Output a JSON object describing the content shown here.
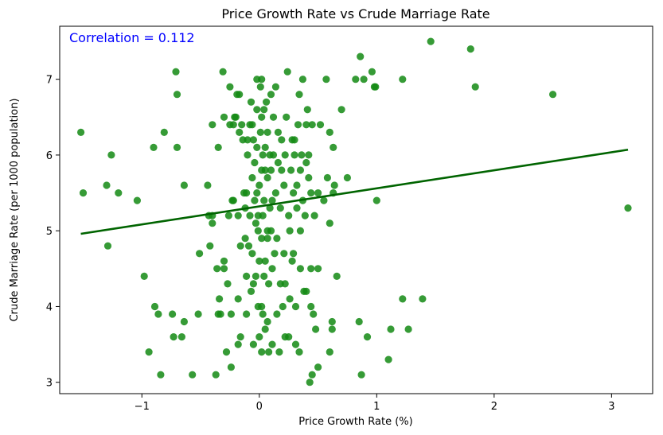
{
  "chart_data": {
    "type": "scatter",
    "title": "Price Growth Rate vs Crude Marriage Rate",
    "xlabel": "Price Growth Rate (%)",
    "ylabel": "Crude Marriage Rate (per 1000 population)",
    "xlim": [
      -1.7,
      3.35
    ],
    "ylim": [
      2.85,
      7.7
    ],
    "xticks": [
      -1,
      0,
      1,
      2,
      3
    ],
    "yticks": [
      3,
      4,
      5,
      6,
      7
    ],
    "xtick_labels": [
      "−1",
      "0",
      "1",
      "2",
      "3"
    ],
    "ytick_labels": [
      "3",
      "4",
      "5",
      "6",
      "7"
    ],
    "grid": false,
    "annotation": "Correlation = 0.112",
    "annotation_color": "#0000ff",
    "point_color": "#138a13",
    "line_color": "#006400",
    "regression_line": {
      "x": [
        -1.52,
        3.14
      ],
      "y": [
        4.96,
        6.07
      ]
    },
    "points": [
      [
        -1.52,
        6.3
      ],
      [
        -1.5,
        5.5
      ],
      [
        -1.3,
        5.6
      ],
      [
        -1.29,
        4.8
      ],
      [
        -1.26,
        6.0
      ],
      [
        -1.2,
        5.5
      ],
      [
        -1.04,
        5.4
      ],
      [
        -0.98,
        4.4
      ],
      [
        -0.94,
        3.4
      ],
      [
        -0.9,
        6.1
      ],
      [
        -0.89,
        4.0
      ],
      [
        -0.86,
        3.9
      ],
      [
        -0.84,
        3.1
      ],
      [
        -0.81,
        6.3
      ],
      [
        -0.74,
        3.9
      ],
      [
        -0.73,
        3.6
      ],
      [
        -0.71,
        7.1
      ],
      [
        -0.7,
        6.8
      ],
      [
        -0.7,
        6.1
      ],
      [
        -0.66,
        3.6
      ],
      [
        -0.64,
        3.8
      ],
      [
        -0.64,
        5.6
      ],
      [
        -0.57,
        3.1
      ],
      [
        -0.52,
        3.9
      ],
      [
        -0.51,
        4.7
      ],
      [
        -0.44,
        5.6
      ],
      [
        -0.43,
        5.2
      ],
      [
        -0.42,
        4.8
      ],
      [
        -0.4,
        5.2
      ],
      [
        -0.4,
        5.1
      ],
      [
        -0.4,
        6.4
      ],
      [
        -0.37,
        3.1
      ],
      [
        -0.36,
        4.5
      ],
      [
        -0.35,
        3.9
      ],
      [
        -0.35,
        6.1
      ],
      [
        -0.34,
        4.1
      ],
      [
        -0.33,
        3.9
      ],
      [
        -0.31,
        7.1
      ],
      [
        -0.3,
        4.5
      ],
      [
        -0.3,
        4.6
      ],
      [
        -0.3,
        6.5
      ],
      [
        -0.28,
        3.4
      ],
      [
        -0.27,
        4.3
      ],
      [
        -0.26,
        5.2
      ],
      [
        -0.25,
        6.4
      ],
      [
        -0.24,
        3.9
      ],
      [
        -0.25,
        6.9
      ],
      [
        -0.24,
        3.2
      ],
      [
        -0.23,
        5.4
      ],
      [
        -0.22,
        5.4
      ],
      [
        -0.22,
        6.4
      ],
      [
        -0.21,
        6.5
      ],
      [
        -0.2,
        6.5
      ],
      [
        -0.19,
        6.8
      ],
      [
        -0.18,
        3.5
      ],
      [
        -0.18,
        4.1
      ],
      [
        -0.18,
        5.2
      ],
      [
        -0.17,
        6.3
      ],
      [
        -0.17,
        6.8
      ],
      [
        -0.16,
        3.6
      ],
      [
        -0.16,
        4.8
      ],
      [
        -0.15,
        6.4
      ],
      [
        -0.14,
        6.2
      ],
      [
        -0.13,
        5.5
      ],
      [
        -0.12,
        4.9
      ],
      [
        -0.12,
        5.3
      ],
      [
        -0.11,
        3.9
      ],
      [
        -0.11,
        4.4
      ],
      [
        -0.11,
        5.5
      ],
      [
        -0.1,
        6.0
      ],
      [
        -0.1,
        6.2
      ],
      [
        -0.09,
        4.8
      ],
      [
        -0.08,
        5.2
      ],
      [
        -0.08,
        6.4
      ],
      [
        -0.07,
        6.7
      ],
      [
        -0.07,
        4.2
      ],
      [
        -0.06,
        4.7
      ],
      [
        -0.06,
        5.7
      ],
      [
        -0.06,
        6.4
      ],
      [
        -0.05,
        3.5
      ],
      [
        -0.05,
        4.3
      ],
      [
        -0.05,
        6.2
      ],
      [
        -0.04,
        5.4
      ],
      [
        -0.04,
        5.9
      ],
      [
        -0.03,
        4.4
      ],
      [
        -0.03,
        5.1
      ],
      [
        -0.02,
        5.5
      ],
      [
        -0.02,
        6.1
      ],
      [
        -0.02,
        6.6
      ],
      [
        -0.02,
        7.0
      ],
      [
        -0.01,
        4.0
      ],
      [
        -0.01,
        5.0
      ],
      [
        -0.01,
        5.2
      ],
      [
        0.0,
        3.6
      ],
      [
        0.0,
        4.6
      ],
      [
        0.0,
        5.6
      ],
      [
        0.01,
        6.3
      ],
      [
        0.01,
        6.9
      ],
      [
        0.02,
        3.4
      ],
      [
        0.02,
        4.0
      ],
      [
        0.02,
        4.9
      ],
      [
        0.02,
        5.8
      ],
      [
        0.02,
        6.5
      ],
      [
        0.02,
        7.0
      ],
      [
        0.03,
        3.9
      ],
      [
        0.03,
        5.2
      ],
      [
        0.03,
        6.0
      ],
      [
        0.04,
        4.4
      ],
      [
        0.04,
        5.4
      ],
      [
        0.04,
        6.6
      ],
      [
        0.05,
        3.7
      ],
      [
        0.05,
        4.6
      ],
      [
        0.05,
        5.8
      ],
      [
        0.05,
        6.1
      ],
      [
        0.06,
        6.7
      ],
      [
        0.07,
        4.9
      ],
      [
        0.07,
        3.8
      ],
      [
        0.07,
        5.0
      ],
      [
        0.07,
        5.7
      ],
      [
        0.07,
        6.3
      ],
      [
        0.08,
        3.4
      ],
      [
        0.08,
        4.3
      ],
      [
        0.09,
        5.3
      ],
      [
        0.09,
        6.0
      ],
      [
        0.1,
        6.8
      ],
      [
        0.1,
        5.8
      ],
      [
        0.1,
        5.0
      ],
      [
        0.11,
        3.5
      ],
      [
        0.11,
        4.5
      ],
      [
        0.11,
        5.4
      ],
      [
        0.12,
        6.0
      ],
      [
        0.12,
        6.5
      ],
      [
        0.13,
        4.7
      ],
      [
        0.14,
        5.5
      ],
      [
        0.14,
        6.9
      ],
      [
        0.15,
        3.9
      ],
      [
        0.15,
        4.9
      ],
      [
        0.16,
        5.9
      ],
      [
        0.16,
        6.3
      ],
      [
        0.17,
        3.4
      ],
      [
        0.18,
        4.3
      ],
      [
        0.18,
        5.3
      ],
      [
        0.19,
        5.8
      ],
      [
        0.19,
        6.2
      ],
      [
        0.2,
        4.0
      ],
      [
        0.21,
        5.6
      ],
      [
        0.21,
        4.7
      ],
      [
        0.22,
        3.6
      ],
      [
        0.22,
        4.3
      ],
      [
        0.22,
        6.0
      ],
      [
        0.23,
        6.5
      ],
      [
        0.24,
        7.1
      ],
      [
        0.25,
        5.2
      ],
      [
        0.25,
        3.6
      ],
      [
        0.26,
        4.1
      ],
      [
        0.26,
        5.0
      ],
      [
        0.27,
        5.8
      ],
      [
        0.28,
        6.2
      ],
      [
        0.28,
        4.6
      ],
      [
        0.29,
        4.7
      ],
      [
        0.29,
        5.5
      ],
      [
        0.3,
        6.0
      ],
      [
        0.3,
        6.2
      ],
      [
        0.31,
        3.5
      ],
      [
        0.31,
        4.0
      ],
      [
        0.32,
        5.3
      ],
      [
        0.32,
        5.6
      ],
      [
        0.33,
        6.4
      ],
      [
        0.34,
        6.8
      ],
      [
        0.34,
        3.4
      ],
      [
        0.35,
        4.5
      ],
      [
        0.35,
        5.0
      ],
      [
        0.35,
        5.8
      ],
      [
        0.36,
        6.0
      ],
      [
        0.37,
        7.0
      ],
      [
        0.37,
        5.4
      ],
      [
        0.38,
        4.2
      ],
      [
        0.39,
        5.2
      ],
      [
        0.4,
        5.9
      ],
      [
        0.4,
        6.4
      ],
      [
        0.4,
        4.2
      ],
      [
        0.41,
        6.6
      ],
      [
        0.42,
        5.7
      ],
      [
        0.42,
        6.0
      ],
      [
        0.43,
        3.0
      ],
      [
        0.44,
        4.0
      ],
      [
        0.44,
        4.5
      ],
      [
        0.44,
        5.5
      ],
      [
        0.45,
        6.4
      ],
      [
        0.45,
        3.1
      ],
      [
        0.46,
        3.9
      ],
      [
        0.47,
        5.2
      ],
      [
        0.48,
        3.7
      ],
      [
        0.5,
        4.5
      ],
      [
        0.5,
        5.5
      ],
      [
        0.5,
        3.2
      ],
      [
        0.52,
        6.4
      ],
      [
        0.55,
        5.4
      ],
      [
        0.57,
        7.0
      ],
      [
        0.58,
        5.7
      ],
      [
        0.6,
        3.4
      ],
      [
        0.6,
        6.3
      ],
      [
        0.6,
        5.1
      ],
      [
        0.62,
        3.8
      ],
      [
        0.62,
        3.7
      ],
      [
        0.63,
        5.5
      ],
      [
        0.63,
        6.1
      ],
      [
        0.64,
        5.6
      ],
      [
        0.66,
        4.4
      ],
      [
        0.7,
        6.6
      ],
      [
        0.75,
        5.7
      ],
      [
        0.82,
        7.0
      ],
      [
        0.85,
        3.8
      ],
      [
        0.86,
        7.3
      ],
      [
        0.87,
        3.1
      ],
      [
        0.89,
        7.0
      ],
      [
        0.92,
        3.6
      ],
      [
        0.96,
        7.1
      ],
      [
        0.98,
        6.9
      ],
      [
        0.99,
        6.9
      ],
      [
        1.0,
        5.4
      ],
      [
        1.1,
        3.3
      ],
      [
        1.12,
        3.7
      ],
      [
        1.22,
        7.0
      ],
      [
        1.22,
        4.1
      ],
      [
        1.27,
        3.7
      ],
      [
        1.39,
        4.1
      ],
      [
        1.46,
        7.5
      ],
      [
        1.8,
        7.4
      ],
      [
        1.84,
        6.9
      ],
      [
        2.5,
        6.8
      ],
      [
        3.14,
        5.3
      ]
    ]
  }
}
